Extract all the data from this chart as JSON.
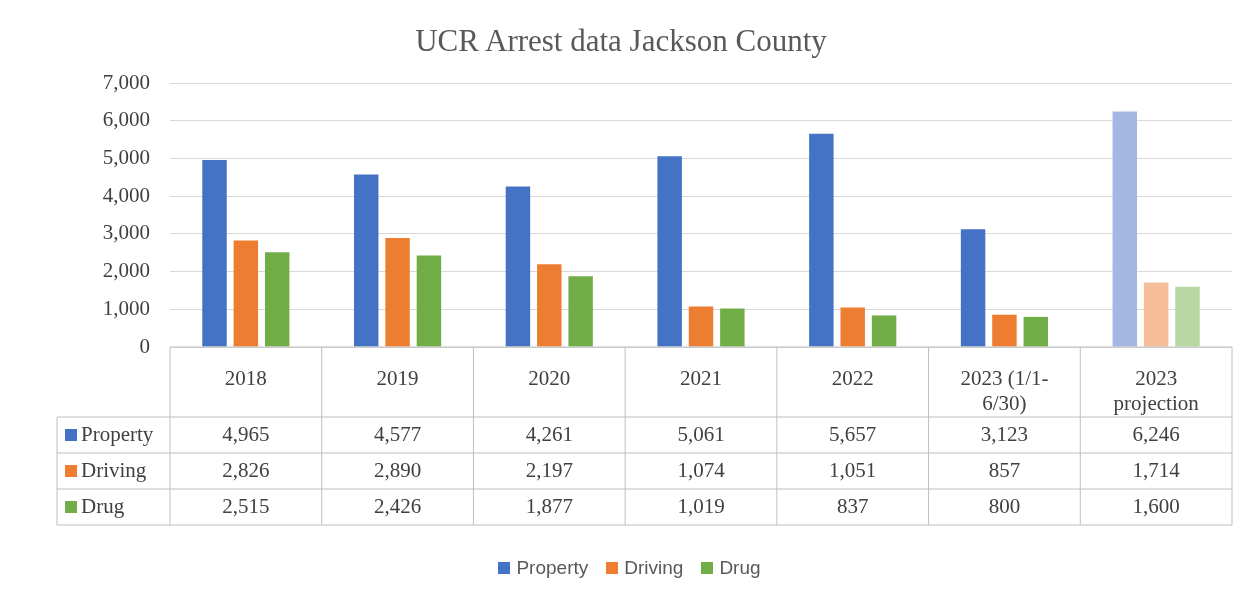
{
  "chart_data": {
    "type": "bar",
    "title": "UCR Arrest data Jackson County",
    "categories": [
      "2018",
      "2019",
      "2020",
      "2021",
      "2022",
      "2023 (1/1-6/30)",
      "2023 projection"
    ],
    "series": [
      {
        "name": "Property",
        "color": "#4472c4",
        "colors": [
          "#4472c4",
          "#4472c4",
          "#4472c4",
          "#4472c4",
          "#4472c4",
          "#4472c4",
          "#a2b8e2"
        ],
        "values": [
          4965,
          4577,
          4261,
          5061,
          5657,
          3123,
          6246
        ],
        "value_labels": [
          "4,965",
          "4,577",
          "4,261",
          "5,061",
          "5,657",
          "3,123",
          "6,246"
        ]
      },
      {
        "name": "Driving",
        "color": "#ed7d31",
        "colors": [
          "#ed7d31",
          "#ed7d31",
          "#ed7d31",
          "#ed7d31",
          "#ed7d31",
          "#ed7d31",
          "#f6be98"
        ],
        "values": [
          2826,
          2890,
          2197,
          1074,
          1051,
          857,
          1714
        ],
        "value_labels": [
          "2,826",
          "2,890",
          "2,197",
          "1,074",
          "1,051",
          "857",
          "1,714"
        ]
      },
      {
        "name": "Drug",
        "color": "#70ad47",
        "colors": [
          "#70ad47",
          "#70ad47",
          "#70ad47",
          "#70ad47",
          "#70ad47",
          "#70ad47",
          "#b7d7a3"
        ],
        "values": [
          2515,
          2426,
          1877,
          1019,
          837,
          800,
          1600
        ],
        "value_labels": [
          "2,515",
          "2,426",
          "1,877",
          "1,019",
          "837",
          "800",
          "1,600"
        ]
      }
    ],
    "ylim": [
      0,
      7000
    ],
    "yticks": [
      0,
      {
        "value": 1000,
        "label": "1,000"
      },
      {
        "value": 2000,
        "label": "2,000"
      },
      {
        "value": 3000,
        "label": "3,000"
      },
      {
        "value": 4000,
        "label": "4,000"
      },
      {
        "value": 5000,
        "label": "5,000"
      },
      {
        "value": 6000,
        "label": "6,000"
      },
      {
        "value": 7000,
        "label": "7,000"
      }
    ],
    "grid": "y",
    "legend": "bottom"
  }
}
